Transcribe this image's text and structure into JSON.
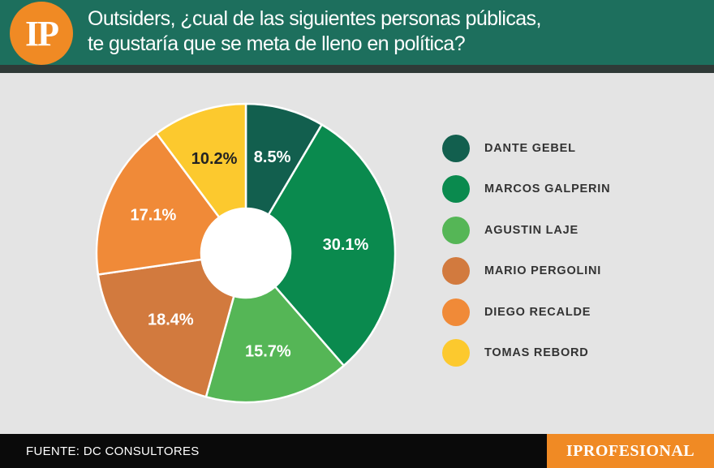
{
  "header": {
    "logo_text": "IP",
    "title_line1": "Outsiders, ¿cual de las siguientes personas públicas,",
    "title_line2": "te gustaría que se meta de lleno en política?"
  },
  "footer": {
    "source": "FUENTE: DC CONSULTORES",
    "brand": "IPROFESIONAL"
  },
  "chart_data": {
    "type": "pie",
    "title": "Outsiders, ¿cual de las siguientes personas públicas, te gustaría que se meta de lleno en política?",
    "unit": "%",
    "legend_position": "right",
    "slices": [
      {
        "label": "DANTE GEBEL",
        "value": 8.5,
        "display": "8.5%",
        "color": "#125f4e"
      },
      {
        "label": "MARCOS GALPERIN",
        "value": 30.1,
        "display": "30.1%",
        "color": "#0a8a4e"
      },
      {
        "label": "AGUSTIN LAJE",
        "value": 15.7,
        "display": "15.7%",
        "color": "#55b656"
      },
      {
        "label": "MARIO PERGOLINI",
        "value": 18.4,
        "display": "18.4%",
        "color": "#d27a3e"
      },
      {
        "label": "DIEGO RECALDE",
        "value": 17.1,
        "display": "17.1%",
        "color": "#f08a38"
      },
      {
        "label": "TOMAS REBORD",
        "value": 10.2,
        "display": "10.2%",
        "color": "#fcc92e"
      }
    ]
  }
}
